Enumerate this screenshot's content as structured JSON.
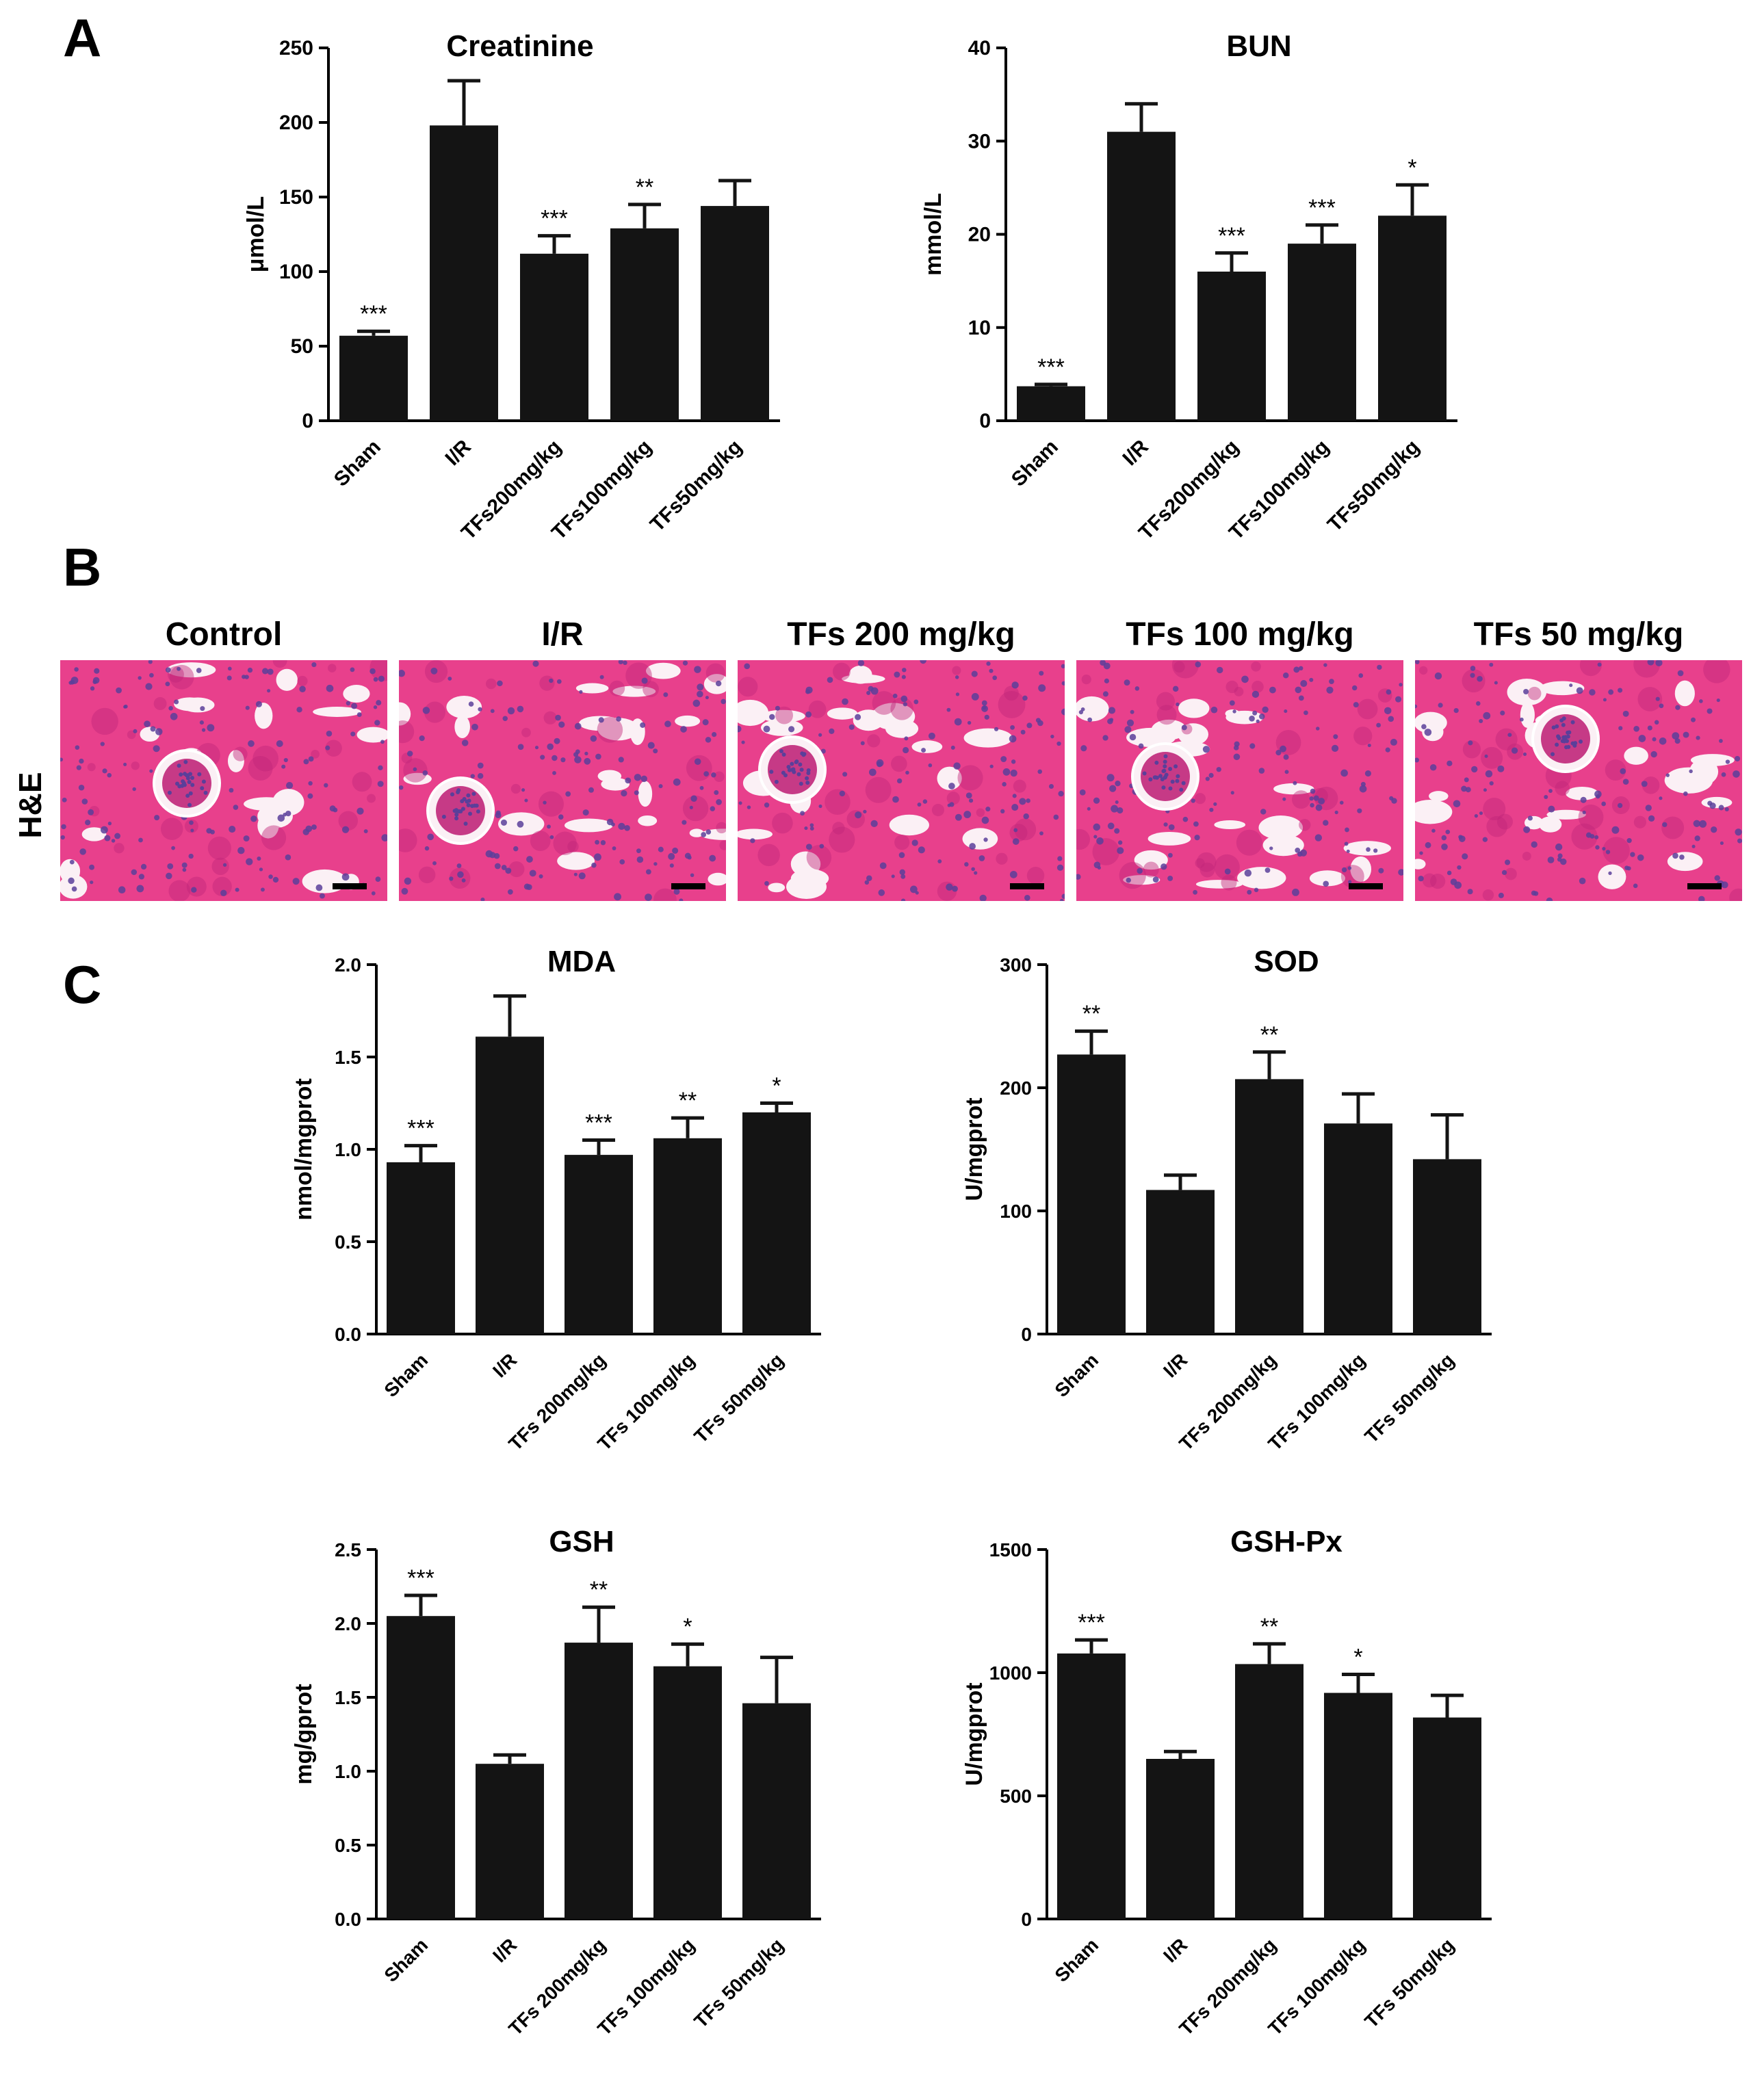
{
  "panels": {
    "a": "A",
    "b": "B",
    "c": "C"
  },
  "histology": {
    "stain_label": "H&E",
    "images": [
      {
        "title": "Control"
      },
      {
        "title": "I/R"
      },
      {
        "title": "TFs 200 mg/kg"
      },
      {
        "title": "TFs 100 mg/kg"
      },
      {
        "title": "TFs 50 mg/kg"
      }
    ]
  },
  "colors": {
    "bar": "#141414",
    "tissue_bg": "#e8408c",
    "tissue_dark": "#c0267a",
    "nuclei": "#5a3f9a",
    "lumen": "#fbf0f5"
  },
  "chart_data": [
    {
      "type": "bar",
      "title": "Creatinine",
      "ylabel": "μmol/L",
      "xlabel": "",
      "ylim": [
        0,
        250
      ],
      "yticks": [
        0,
        50,
        100,
        150,
        200,
        250
      ],
      "categories": [
        "Sham",
        "I/R",
        "TFs200mg/kg",
        "TFs100mg/kg",
        "TFs50mg/kg"
      ],
      "values": [
        57,
        198,
        112,
        129,
        144
      ],
      "errors": [
        3,
        30,
        12,
        16,
        17
      ],
      "significance": [
        "***",
        "",
        "***",
        "**",
        ""
      ],
      "grid": false,
      "legend": "none"
    },
    {
      "type": "bar",
      "title": "BUN",
      "ylabel": "mmol/L",
      "xlabel": "",
      "ylim": [
        0,
        40
      ],
      "yticks": [
        0,
        10,
        20,
        30,
        40
      ],
      "categories": [
        "Sham",
        "I/R",
        "TFs200mg/kg",
        "TFs100mg/kg",
        "TFs50mg/kg"
      ],
      "values": [
        3.7,
        31,
        16,
        19,
        22
      ],
      "errors": [
        0.2,
        3,
        2,
        2,
        3.3
      ],
      "significance": [
        "***",
        "",
        "***",
        "***",
        "*"
      ],
      "grid": false,
      "legend": "none"
    },
    {
      "type": "bar",
      "title": "MDA",
      "ylabel": "nmol/mgprot",
      "xlabel": "",
      "ylim": [
        0,
        2.0
      ],
      "yticks": [
        "0.0",
        "0.5",
        "1.0",
        "1.5",
        "2.0"
      ],
      "categories": [
        "Sham",
        "I/R",
        "TFs 200mg/kg",
        "TFs 100mg/kg",
        "TFs 50mg/kg"
      ],
      "values": [
        0.93,
        1.61,
        0.97,
        1.06,
        1.2
      ],
      "errors": [
        0.09,
        0.22,
        0.08,
        0.11,
        0.05
      ],
      "significance": [
        "***",
        "",
        "***",
        "**",
        "*"
      ],
      "grid": false,
      "legend": "none"
    },
    {
      "type": "bar",
      "title": "SOD",
      "ylabel": "U/mgprot",
      "xlabel": "",
      "ylim": [
        0,
        300
      ],
      "yticks": [
        0,
        100,
        200,
        300
      ],
      "categories": [
        "Sham",
        "I/R",
        "TFs 200mg/kg",
        "TFs 100mg/kg",
        "TFs 50mg/kg"
      ],
      "values": [
        227,
        117,
        207,
        171,
        142
      ],
      "errors": [
        19,
        12,
        22,
        24,
        36
      ],
      "significance": [
        "**",
        "",
        "**",
        "",
        ""
      ],
      "grid": false,
      "legend": "none"
    },
    {
      "type": "bar",
      "title": "GSH",
      "ylabel": "mg/gprot",
      "xlabel": "",
      "ylim": [
        0,
        2.5
      ],
      "yticks": [
        "0.0",
        "0.5",
        "1.0",
        "1.5",
        "2.0",
        "2.5"
      ],
      "categories": [
        "Sham",
        "I/R",
        "TFs 200mg/kg",
        "TFs 100mg/kg",
        "TFs 50mg/kg"
      ],
      "values": [
        2.05,
        1.05,
        1.87,
        1.71,
        1.46
      ],
      "errors": [
        0.14,
        0.06,
        0.24,
        0.15,
        0.31
      ],
      "significance": [
        "***",
        "",
        "**",
        "*",
        ""
      ],
      "grid": false,
      "legend": "none"
    },
    {
      "type": "bar",
      "title": "GSH-Px",
      "ylabel": "U/mgprot",
      "xlabel": "",
      "ylim": [
        0,
        1500
      ],
      "yticks": [
        0,
        500,
        1000,
        1500
      ],
      "categories": [
        "Sham",
        "I/R",
        "TFs 200mg/kg",
        "TFs 100mg/kg",
        "TFs 50mg/kg"
      ],
      "values": [
        1078,
        650,
        1035,
        918,
        818
      ],
      "errors": [
        55,
        30,
        82,
        75,
        90
      ],
      "significance": [
        "***",
        "",
        "**",
        "*",
        ""
      ],
      "grid": false,
      "legend": "none"
    }
  ]
}
